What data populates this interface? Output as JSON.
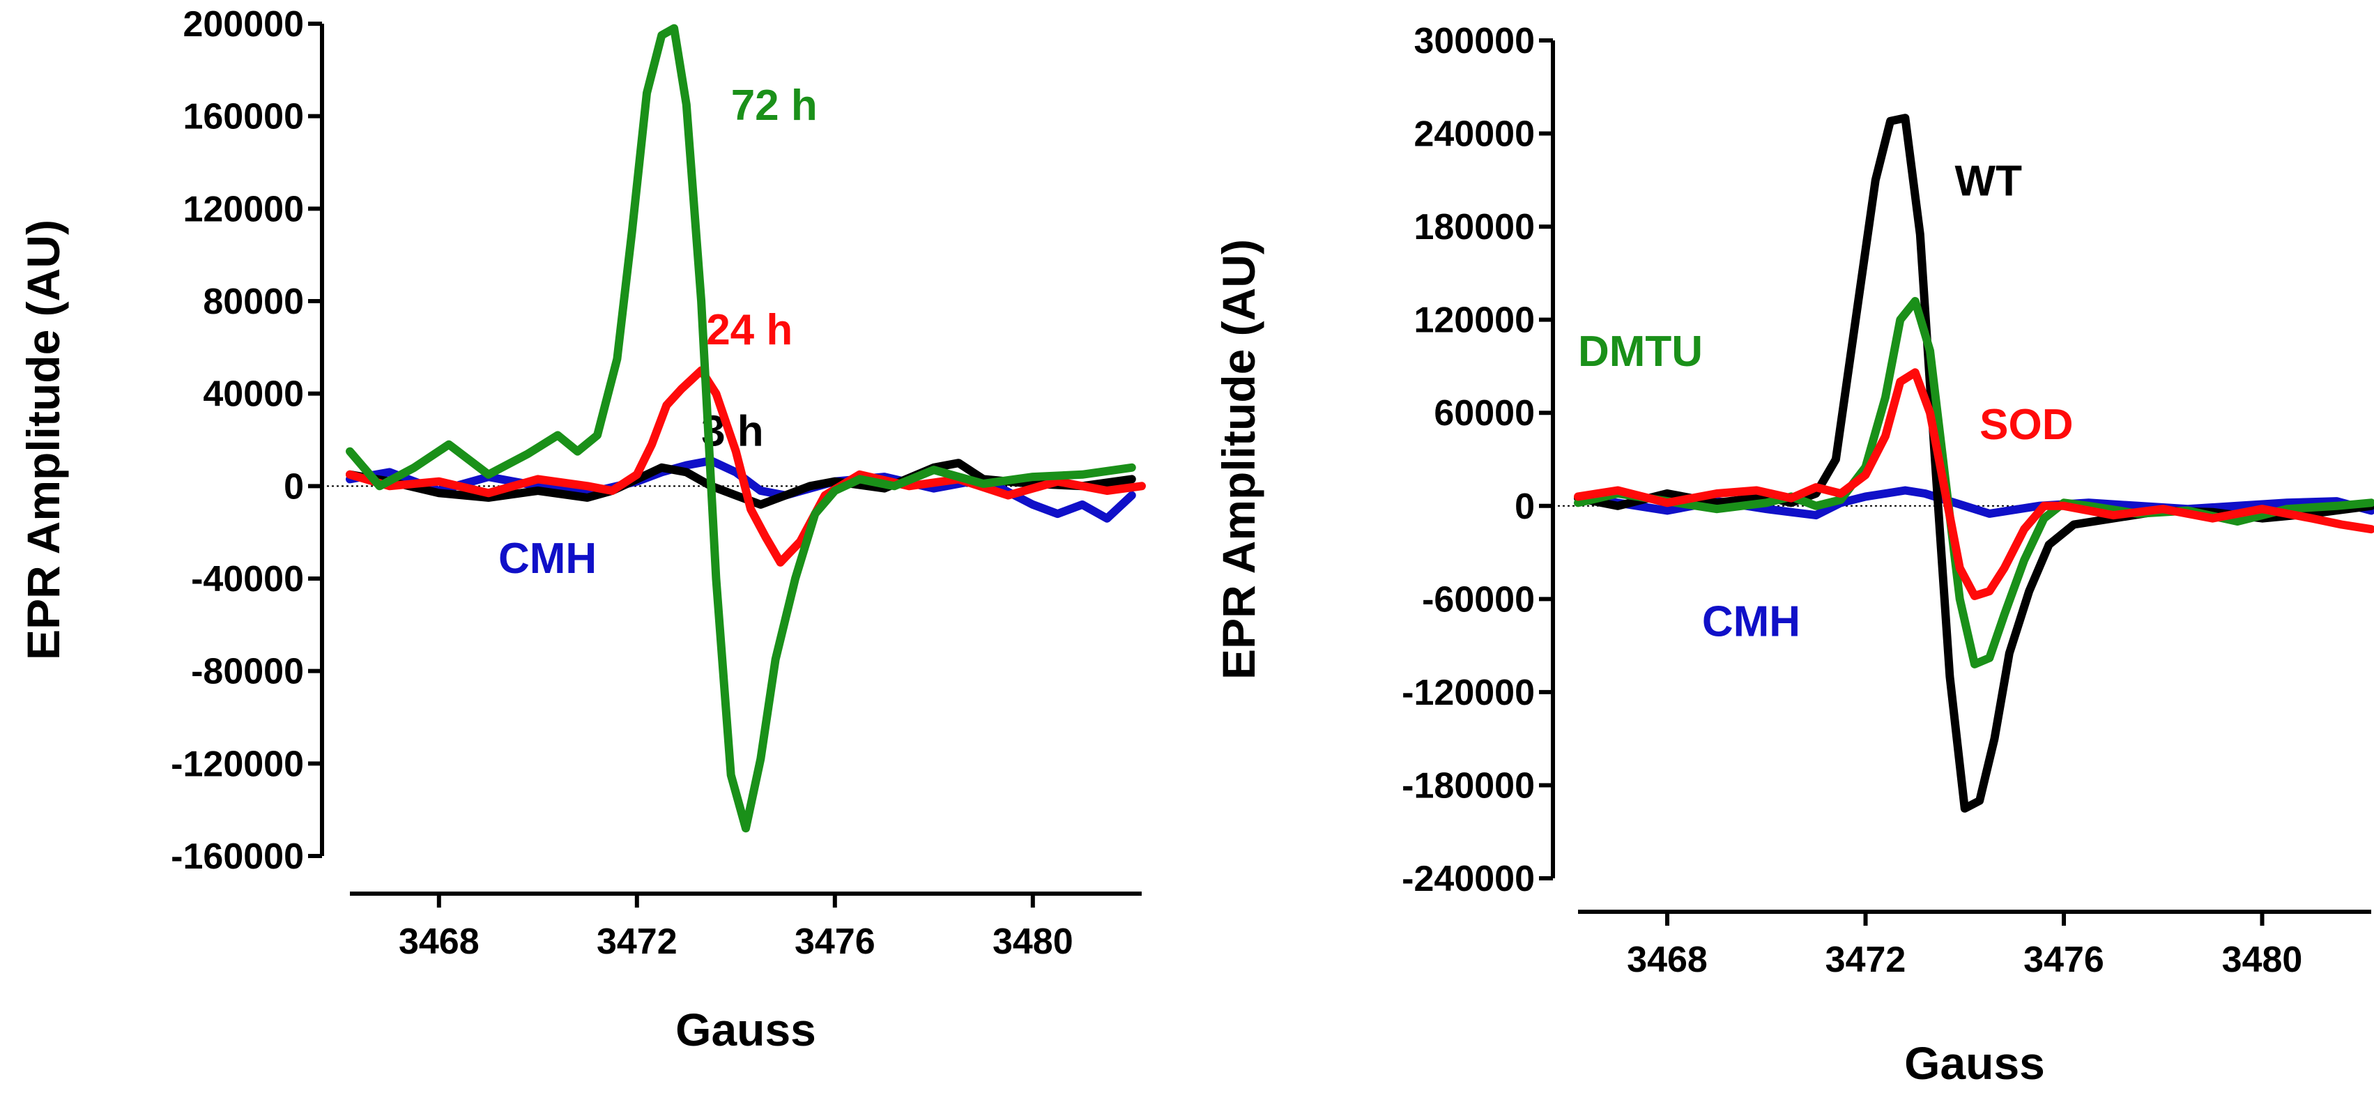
{
  "chart_data": [
    {
      "type": "line",
      "xlabel": "Gauss",
      "ylabel": "EPR Amplitude (AU)",
      "xlim": [
        3466.2,
        3482.2
      ],
      "ylim": [
        -160000,
        200000
      ],
      "xticks": [
        3468,
        3472,
        3476,
        3480
      ],
      "xtick_labels": [
        "3468",
        "3472",
        "3476",
        "3480"
      ],
      "yticks": [
        200000,
        160000,
        120000,
        80000,
        40000,
        0,
        -40000,
        -80000,
        -120000,
        -160000
      ],
      "ytick_labels": [
        "200000",
        "160000",
        "120000",
        "80000",
        "40000",
        "0",
        "-40000",
        "-80000",
        "-120000",
        "-160000"
      ],
      "grid": false,
      "series": [
        {
          "name": "CMH",
          "color": "#1010c8",
          "label_pos": [
            3469.2,
            -31000
          ],
          "x": [
            3466.2,
            3467.0,
            3468.0,
            3469.0,
            3470.0,
            3471.0,
            3472.0,
            3472.5,
            3473.0,
            3473.5,
            3474.0,
            3474.5,
            3475.0,
            3476.0,
            3477.0,
            3478.0,
            3479.0,
            3480.0,
            3480.5,
            3481.0,
            3481.5,
            3482.0
          ],
          "y": [
            3000,
            6000,
            -2000,
            4000,
            0,
            -3000,
            2000,
            6000,
            9000,
            11000,
            6000,
            -2000,
            -4000,
            2000,
            4000,
            -1000,
            3000,
            -8000,
            -12000,
            -8000,
            -14000,
            -4000
          ]
        },
        {
          "name": "3 h",
          "color": "#000000",
          "label_pos": [
            3473.3,
            24000
          ],
          "x": [
            3466.2,
            3467.0,
            3468.0,
            3469.0,
            3470.0,
            3471.0,
            3471.5,
            3472.0,
            3472.5,
            3473.0,
            3473.5,
            3474.0,
            3474.5,
            3475.0,
            3475.5,
            3476.0,
            3477.0,
            3478.0,
            3478.5,
            3479.0,
            3480.0,
            3481.0,
            3482.0
          ],
          "y": [
            5000,
            2000,
            -3000,
            -5000,
            -2000,
            -5000,
            -2000,
            3000,
            8000,
            6000,
            0,
            -4000,
            -8000,
            -4000,
            0,
            2000,
            -1000,
            8000,
            10000,
            3000,
            1000,
            0,
            3000
          ]
        },
        {
          "name": "24 h",
          "color": "#ff0a0a",
          "label_pos": [
            3473.4,
            68000
          ],
          "x": [
            3466.2,
            3467.0,
            3468.0,
            3469.0,
            3470.0,
            3471.0,
            3471.5,
            3472.0,
            3472.3,
            3472.6,
            3472.9,
            3473.1,
            3473.3,
            3473.6,
            3474.0,
            3474.3,
            3474.6,
            3474.9,
            3475.3,
            3475.8,
            3476.5,
            3477.5,
            3478.5,
            3479.5,
            3480.5,
            3481.5,
            3482.2
          ],
          "y": [
            5000,
            0,
            2000,
            -3000,
            3000,
            0,
            -2000,
            5000,
            18000,
            35000,
            42000,
            46000,
            50000,
            40000,
            15000,
            -10000,
            -22000,
            -33000,
            -24000,
            -4000,
            5000,
            0,
            3000,
            -4000,
            2000,
            -2000,
            0
          ]
        },
        {
          "name": "72 h",
          "color": "#1a9019",
          "label_pos": [
            3473.9,
            165000
          ],
          "x": [
            3466.2,
            3466.8,
            3467.5,
            3468.2,
            3469.0,
            3469.8,
            3470.4,
            3470.8,
            3471.2,
            3471.6,
            3471.9,
            3472.2,
            3472.5,
            3472.75,
            3473.0,
            3473.3,
            3473.6,
            3473.9,
            3474.2,
            3474.5,
            3474.8,
            3475.2,
            3475.6,
            3476.0,
            3476.5,
            3477.2,
            3478.0,
            3479.0,
            3480.0,
            3481.0,
            3482.0
          ],
          "y": [
            15000,
            0,
            8000,
            18000,
            5000,
            14000,
            22000,
            15000,
            22000,
            55000,
            110000,
            170000,
            195000,
            198000,
            165000,
            80000,
            -40000,
            -125000,
            -148000,
            -118000,
            -75000,
            -40000,
            -12000,
            -2000,
            3000,
            0,
            7000,
            1000,
            4000,
            5000,
            8000
          ]
        }
      ]
    },
    {
      "type": "line",
      "xlabel": "Gauss",
      "ylabel": "EPR Amplitude (AU)",
      "xlim": [
        3466.2,
        3482.2
      ],
      "ylim": [
        -240000,
        300000
      ],
      "xticks": [
        3468,
        3472,
        3476,
        3480
      ],
      "xtick_labels": [
        "3468",
        "3472",
        "3476",
        "3480"
      ],
      "yticks": [
        300000,
        240000,
        180000,
        120000,
        60000,
        0,
        -60000,
        -120000,
        -180000,
        -240000
      ],
      "ytick_labels": [
        "300000",
        "240000",
        "180000",
        "120000",
        "60000",
        "0",
        "-60000",
        "-120000",
        "-180000",
        "-240000"
      ],
      "grid": false,
      "series": [
        {
          "name": "CMH",
          "color": "#1010c8",
          "label_pos": [
            3468.7,
            -74000
          ],
          "x": [
            3466.2,
            3467.0,
            3468.0,
            3469.0,
            3470.0,
            3470.5,
            3471.0,
            3471.5,
            3472.0,
            3472.4,
            3472.8,
            3473.2,
            3473.8,
            3474.5,
            3475.5,
            3476.5,
            3477.5,
            3478.5,
            3479.5,
            3480.5,
            3481.5,
            3482.2
          ],
          "y": [
            5000,
            2000,
            -3000,
            3000,
            -2000,
            -4000,
            -6000,
            2000,
            6000,
            8000,
            10000,
            8000,
            2000,
            -5000,
            0,
            2000,
            0,
            -2000,
            0,
            2000,
            3000,
            -3000
          ]
        },
        {
          "name": "WT",
          "color": "#000000",
          "label_pos": [
            3473.8,
            210000
          ],
          "x": [
            3466.2,
            3467.0,
            3468.0,
            3469.0,
            3470.0,
            3470.5,
            3471.0,
            3471.4,
            3471.8,
            3472.2,
            3472.5,
            3472.8,
            3473.1,
            3473.4,
            3473.7,
            3474.0,
            3474.3,
            3474.6,
            3474.9,
            3475.3,
            3475.7,
            3476.2,
            3477.0,
            3478.0,
            3479.0,
            3480.0,
            3481.0,
            3482.2
          ],
          "y": [
            5000,
            0,
            8000,
            2000,
            6000,
            2000,
            8000,
            30000,
            120000,
            210000,
            248000,
            250000,
            175000,
            30000,
            -110000,
            -195000,
            -190000,
            -150000,
            -95000,
            -55000,
            -25000,
            -12000,
            -8000,
            -3000,
            -4000,
            -8000,
            -5000,
            0
          ]
        },
        {
          "name": "DMTU",
          "color": "#1a9019",
          "label_pos": [
            3466.2,
            100000
          ],
          "x": [
            3466.2,
            3467.0,
            3468.0,
            3469.0,
            3470.0,
            3470.5,
            3471.0,
            3471.5,
            3472.0,
            3472.4,
            3472.7,
            3473.0,
            3473.3,
            3473.6,
            3473.9,
            3474.2,
            3474.5,
            3474.8,
            3475.2,
            3475.6,
            3476.0,
            3476.5,
            3477.5,
            3478.5,
            3479.5,
            3480.5,
            3481.5,
            3482.2
          ],
          "y": [
            2000,
            8000,
            3000,
            -2000,
            2000,
            6000,
            0,
            4000,
            25000,
            70000,
            120000,
            132000,
            100000,
            20000,
            -60000,
            -102000,
            -98000,
            -70000,
            -35000,
            -8000,
            2000,
            0,
            -5000,
            -3000,
            -10000,
            -2000,
            0,
            2000
          ]
        },
        {
          "name": "SOD",
          "color": "#ff0a0a",
          "label_pos": [
            3474.3,
            53000
          ],
          "x": [
            3466.2,
            3467.0,
            3468.0,
            3469.0,
            3469.8,
            3470.5,
            3471.0,
            3471.5,
            3472.0,
            3472.4,
            3472.7,
            3473.0,
            3473.3,
            3473.6,
            3473.9,
            3474.2,
            3474.5,
            3474.8,
            3475.2,
            3475.6,
            3476.0,
            3477.0,
            3478.0,
            3479.0,
            3480.0,
            3481.0,
            3481.6,
            3482.2
          ],
          "y": [
            6000,
            10000,
            2000,
            8000,
            10000,
            5000,
            12000,
            8000,
            20000,
            45000,
            80000,
            86000,
            60000,
            10000,
            -40000,
            -58000,
            -55000,
            -40000,
            -15000,
            0,
            0,
            -6000,
            -2000,
            -8000,
            -2000,
            -8000,
            -12000,
            -15000
          ]
        }
      ]
    }
  ]
}
